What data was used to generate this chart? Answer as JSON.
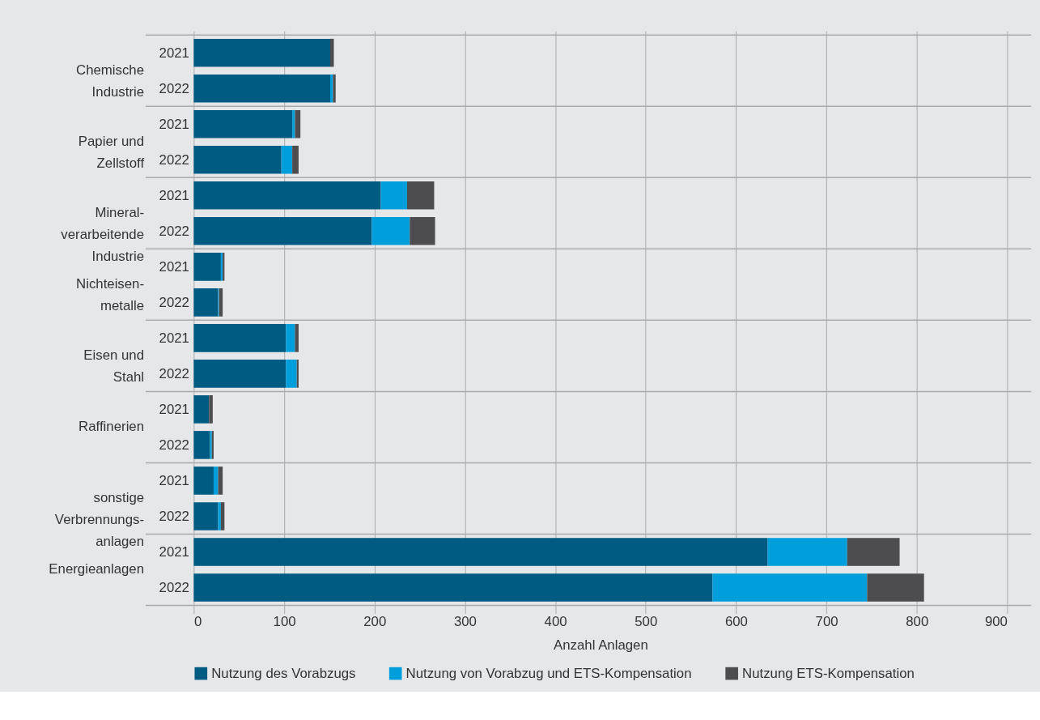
{
  "chart_data": {
    "type": "bar",
    "orientation": "horizontal",
    "stacked": true,
    "categories": [
      "2021",
      "2022",
      "2021",
      "2022",
      "2021",
      "2022",
      "2021",
      "2022",
      "2021",
      "2022",
      "2021",
      "2022",
      "2021",
      "2022",
      "2021",
      "2022"
    ],
    "annotations": [
      "Chemische\nIndustrie",
      "Papier und\nZellstoff",
      "Mineral-\nverarbeitende\nIndustrie",
      "Nichteisen-\nmetalle",
      "Eisen und\nStahl",
      "Raffinerien",
      "sonstige\nVerbrennungs-\nanlagen",
      "Energieanlagen"
    ],
    "series": [
      {
        "name": "Nutzung des Vorabzugs",
        "color": "#005b82",
        "values": [
          151,
          151,
          109,
          97,
          207,
          197,
          30,
          27,
          102,
          102,
          17,
          18,
          22,
          27,
          635,
          574
        ]
      },
      {
        "name": "Nutzung von Vorabzug und ETS-Kompensation",
        "color": "#009fdc",
        "values": [
          0,
          3,
          3,
          12,
          29,
          42,
          2,
          1,
          10,
          12,
          0,
          2,
          5,
          3,
          88,
          171
        ]
      },
      {
        "name": "Nutzung ETS-Kompensation",
        "color": "#4d4d4f",
        "values": [
          4,
          3,
          6,
          7,
          30,
          28,
          2,
          4,
          4,
          2,
          4,
          2,
          5,
          4,
          58,
          63
        ]
      }
    ],
    "xlabel": "Anzahl Anlagen",
    "xlim": [
      0,
      900
    ],
    "xticks": [
      0,
      100,
      200,
      300,
      400,
      500,
      600,
      700,
      800,
      900
    ],
    "grid": true,
    "legend": "bottom"
  }
}
